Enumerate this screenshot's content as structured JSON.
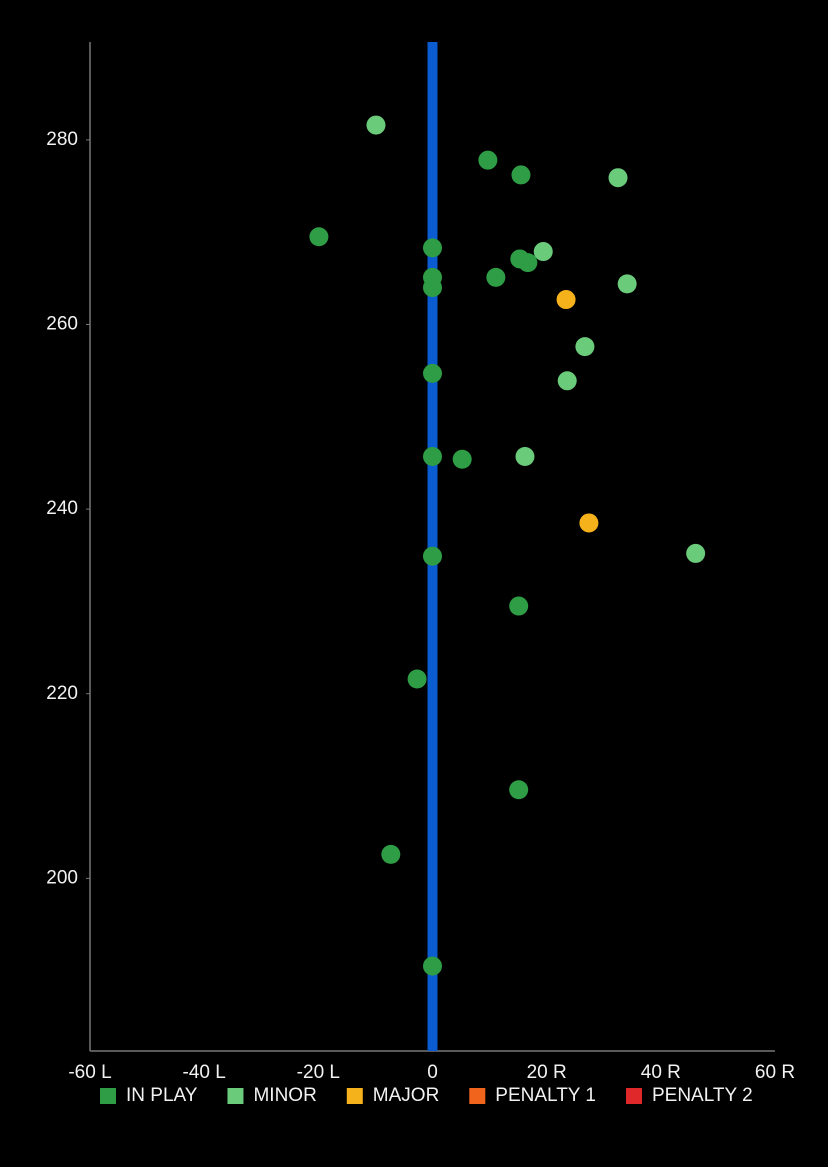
{
  "chart_data": {
    "type": "scatter",
    "xlim": [
      -60,
      60
    ],
    "xticks": [
      {
        "value": -60,
        "label": "-60 L"
      },
      {
        "value": -40,
        "label": "-40 L"
      },
      {
        "value": -20,
        "label": "-20 L"
      },
      0,
      {
        "value": 20,
        "label": "20 R"
      },
      {
        "value": 40,
        "label": "40 R"
      },
      {
        "value": 60,
        "label": "60 R"
      }
    ],
    "ylim": [
      181.3,
      290.6
    ],
    "yticks": [
      200,
      220,
      240,
      260,
      280
    ],
    "series": [
      {
        "name": "IN PLAY",
        "color": "#2e9d45",
        "x": [
          9.7,
          15.5,
          -19.9,
          0,
          15.3,
          16.7,
          0,
          11.1,
          0,
          0,
          0,
          5.2,
          0,
          15.1,
          -2.7,
          15.1,
          -7.3,
          0
        ],
        "y": [
          277.8,
          276.2,
          269.5,
          268.3,
          267.1,
          266.7,
          265.1,
          265.1,
          264.0,
          254.7,
          245.7,
          245.4,
          234.9,
          229.5,
          221.6,
          209.6,
          202.6,
          190.5
        ]
      },
      {
        "name": "MINOR",
        "color": "#6acb7b",
        "x": [
          -9.9,
          32.5,
          19.4,
          34.1,
          26.7,
          23.6,
          16.2,
          46.1
        ],
        "y": [
          281.6,
          275.9,
          267.9,
          264.4,
          257.6,
          253.9,
          245.7,
          235.2
        ]
      },
      {
        "name": "MAJOR",
        "color": "#f6b21b",
        "x": [
          23.4,
          27.4
        ],
        "y": [
          262.7,
          238.5
        ]
      },
      {
        "name": "PENALTY 1",
        "color": "#f0641c",
        "x": [],
        "y": []
      },
      {
        "name": "PENALTY 2",
        "color": "#e0282a",
        "x": [],
        "y": []
      }
    ]
  }
}
